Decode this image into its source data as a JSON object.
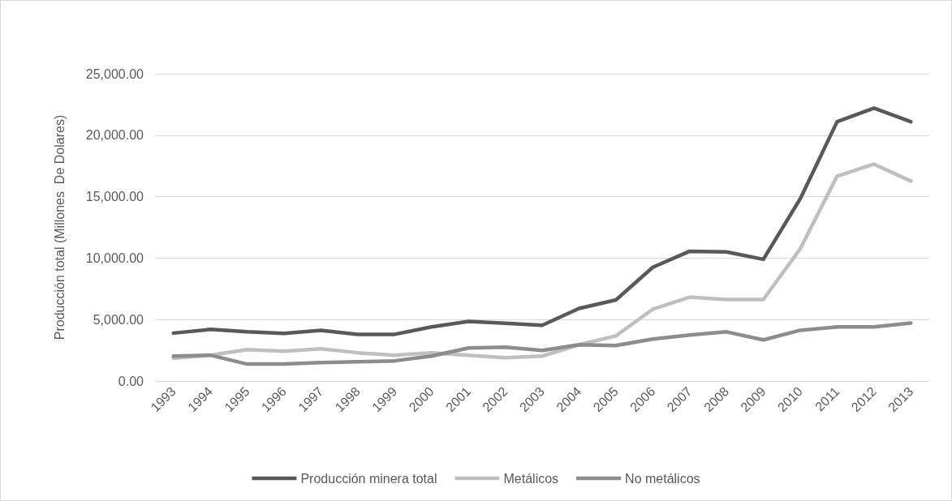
{
  "chart_data": {
    "type": "line",
    "ylabel": "Producción total (Millones  De Dolares)",
    "categories": [
      "1993",
      "1994",
      "1995",
      "1996",
      "1997",
      "1998",
      "1999",
      "2000",
      "2001",
      "2002",
      "2003",
      "2004",
      "2005",
      "2006",
      "2007",
      "2008",
      "2009",
      "2010",
      "2011",
      "2012",
      "2013"
    ],
    "series": [
      {
        "name": "Producción minera total",
        "color": "#595959",
        "values": [
          3900,
          4200,
          4000,
          3870,
          4130,
          3800,
          3800,
          4400,
          4850,
          4700,
          4530,
          5900,
          6600,
          9250,
          10560,
          10500,
          9900,
          14830,
          21100,
          22200,
          21100
        ]
      },
      {
        "name": "Metálicos",
        "color": "#bfbfbf",
        "values": [
          1850,
          2100,
          2560,
          2430,
          2620,
          2300,
          2100,
          2300,
          2100,
          1900,
          2030,
          2950,
          3670,
          5840,
          6820,
          6630,
          6630,
          10760,
          16670,
          17650,
          16270
        ]
      },
      {
        "name": "No metálicos",
        "color": "#8c8c8c",
        "values": [
          2030,
          2100,
          1380,
          1380,
          1500,
          1570,
          1640,
          2030,
          2690,
          2760,
          2490,
          2950,
          2890,
          3410,
          3740,
          4000,
          3350,
          4130,
          4400,
          4400,
          4720
        ]
      }
    ],
    "ylim": [
      0,
      25000
    ],
    "yticks": [
      {
        "value": 0,
        "label": "0.00"
      },
      {
        "value": 5000,
        "label": "5,000.00"
      },
      {
        "value": 10000,
        "label": "10,000.00"
      },
      {
        "value": 15000,
        "label": "15,000.00"
      },
      {
        "value": 20000,
        "label": "20,000.00"
      },
      {
        "value": 25000,
        "label": "25,000.00"
      }
    ],
    "grid": "y",
    "legend": "bottom",
    "marker": "none",
    "line_style": "solid"
  }
}
